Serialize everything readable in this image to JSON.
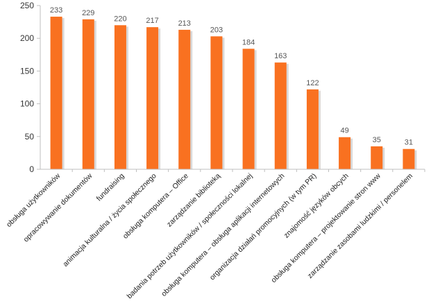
{
  "chart_data": {
    "type": "bar",
    "categories": [
      "obsługa użytkowników",
      "opracowywanie dokumentów",
      "fundraising",
      "animacja kulturalna / życia społecznego",
      "obsługa komputera – Office",
      "zarządzanie biblioteką",
      "badania potrzeb użytkowników / społeczności lokalnej",
      "obsługa komputera – obsługa aplikacji internetowych",
      "organizacja działań promocyjnych (w tym PR)",
      "znajomość języków obcych",
      "obsługa komputera – projektowanie stron www",
      "zarządzanie zasobami ludzkimi / personelem"
    ],
    "values": [
      233,
      229,
      220,
      217,
      213,
      203,
      184,
      163,
      122,
      49,
      35,
      31
    ],
    "data_labels": [
      "233",
      "229",
      "220",
      "217",
      "213",
      "203",
      "184",
      "163",
      "122",
      "49",
      "35",
      "31"
    ],
    "ylim": [
      0,
      250
    ],
    "yticks": [
      0,
      50,
      100,
      150,
      200,
      250
    ],
    "ytick_labels": [
      "0",
      "50",
      "100",
      "150",
      "200",
      "250"
    ],
    "grid": false,
    "colors": {
      "bar": "#F97120",
      "bar_shadow": "#D9D9D9",
      "axis": "#BFBFBF",
      "text": "#333333"
    }
  }
}
